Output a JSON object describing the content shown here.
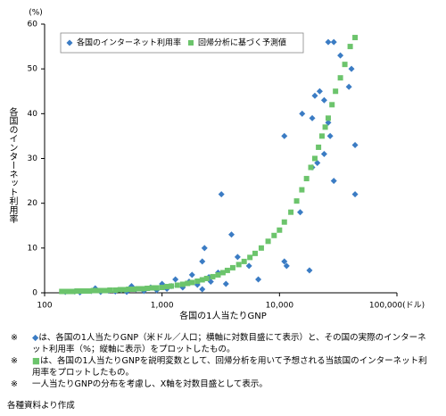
{
  "chart_data": {
    "type": "scatter",
    "y_label_top": "(%)",
    "ylabel": "各国のインターネット利用率",
    "xlabel": "各国の1人当たりGNP",
    "log_x": true,
    "xlim": [
      100,
      100000
    ],
    "xticks": [
      100,
      {
        "value": 1000,
        "label": "1,000"
      },
      {
        "value": 10000,
        "label": "10,000"
      },
      {
        "value": 100000,
        "label": "100,000(ドル)"
      }
    ],
    "ylim": [
      0,
      60
    ],
    "yticks": [
      0,
      10,
      20,
      30,
      40,
      50,
      60
    ],
    "grid": false,
    "legend": "top-left",
    "series": [
      {
        "name": "各国のインターネット利用率",
        "color": "#3b7cc4",
        "marker": "diamond",
        "x": [
          3200,
          11000,
          26000,
          29000,
          33000,
          41000,
          39000,
          44000,
          44000,
          19000,
          22000,
          20000,
          24000,
          15600,
          19000,
          26000,
          27000,
          24000,
          21000,
          29000,
          18000,
          15000,
          3900,
          4400,
          2300,
          2200,
          5500,
          11000,
          11500,
          6600,
          2600,
          3000,
          150,
          180,
          200,
          250,
          270,
          300,
          350,
          400,
          450,
          500,
          550,
          600,
          700,
          800,
          900,
          1000,
          1100,
          1200,
          1300,
          1500,
          1700,
          1800,
          2000,
          2200,
          2500,
          3500
        ],
        "values": [
          22,
          35,
          56,
          56,
          53,
          50,
          46,
          33,
          22,
          28,
          45,
          44,
          43,
          40,
          39,
          38,
          35,
          31,
          29,
          25,
          5,
          18,
          13,
          8,
          10,
          7,
          6,
          7,
          6,
          3,
          2.5,
          4.5,
          0.2,
          0.3,
          0.1,
          0.4,
          1.0,
          0.2,
          0.5,
          0.3,
          0.6,
          0.2,
          1.5,
          0.8,
          0.4,
          1.2,
          0.6,
          2,
          0.9,
          1.5,
          3,
          1.2,
          2.5,
          4,
          1.8,
          0.8,
          3.5,
          2
        ]
      },
      {
        "name": "回帰分析に基づく予測値",
        "color": "#6cc46c",
        "marker": "square",
        "x": [
          140,
          150,
          160,
          175,
          190,
          200,
          220,
          240,
          260,
          280,
          300,
          330,
          360,
          400,
          440,
          480,
          520,
          570,
          620,
          680,
          750,
          820,
          900,
          1000,
          1100,
          1200,
          1350,
          1500,
          1650,
          1800,
          2000,
          2200,
          2400,
          2700,
          3000,
          3300,
          3600,
          4000,
          4500,
          5000,
          5600,
          6200,
          7000,
          8000,
          9000,
          10000,
          11000,
          12500,
          14000,
          15500,
          17000,
          18500,
          20000,
          21500,
          23000,
          24500,
          26000,
          28000,
          30000,
          33000,
          36000,
          40000,
          44000
        ],
        "values": [
          0.3,
          0.3,
          0.3,
          0.3,
          0.4,
          0.4,
          0.4,
          0.4,
          0.5,
          0.5,
          0.5,
          0.5,
          0.6,
          0.6,
          0.7,
          0.7,
          0.8,
          0.8,
          0.9,
          0.9,
          1.0,
          1.1,
          1.1,
          1.2,
          1.4,
          1.5,
          1.7,
          1.9,
          2.1,
          2.3,
          2.6,
          2.9,
          3.2,
          3.6,
          4.0,
          4.5,
          5.0,
          5.6,
          6.3,
          7.0,
          7.9,
          8.8,
          10,
          11.5,
          12.8,
          14,
          15.8,
          18,
          20.5,
          23,
          25.5,
          28,
          30,
          32.5,
          35,
          37,
          39,
          42,
          45,
          48,
          51,
          55,
          57
        ]
      }
    ]
  },
  "notes": [
    {
      "marker": "※",
      "text": "は、各国の1人当たりGNP（米ドル／人口；横軸に対数目盛にて表示）と、その国の実際のインターネット利用率（%；縦軸に表示）をプロットしたもの。"
    },
    {
      "marker": "※",
      "text": "は、各国の1人当たりGNPを説明変数として、回帰分析を用いて予想される当該国のインターネット利用率をプロットしたもの。"
    },
    {
      "marker": "※",
      "text": "一人当たりGNPの分布を考慮し、X軸を対数目盛として表示。"
    }
  ],
  "source": "各種資料より作成"
}
